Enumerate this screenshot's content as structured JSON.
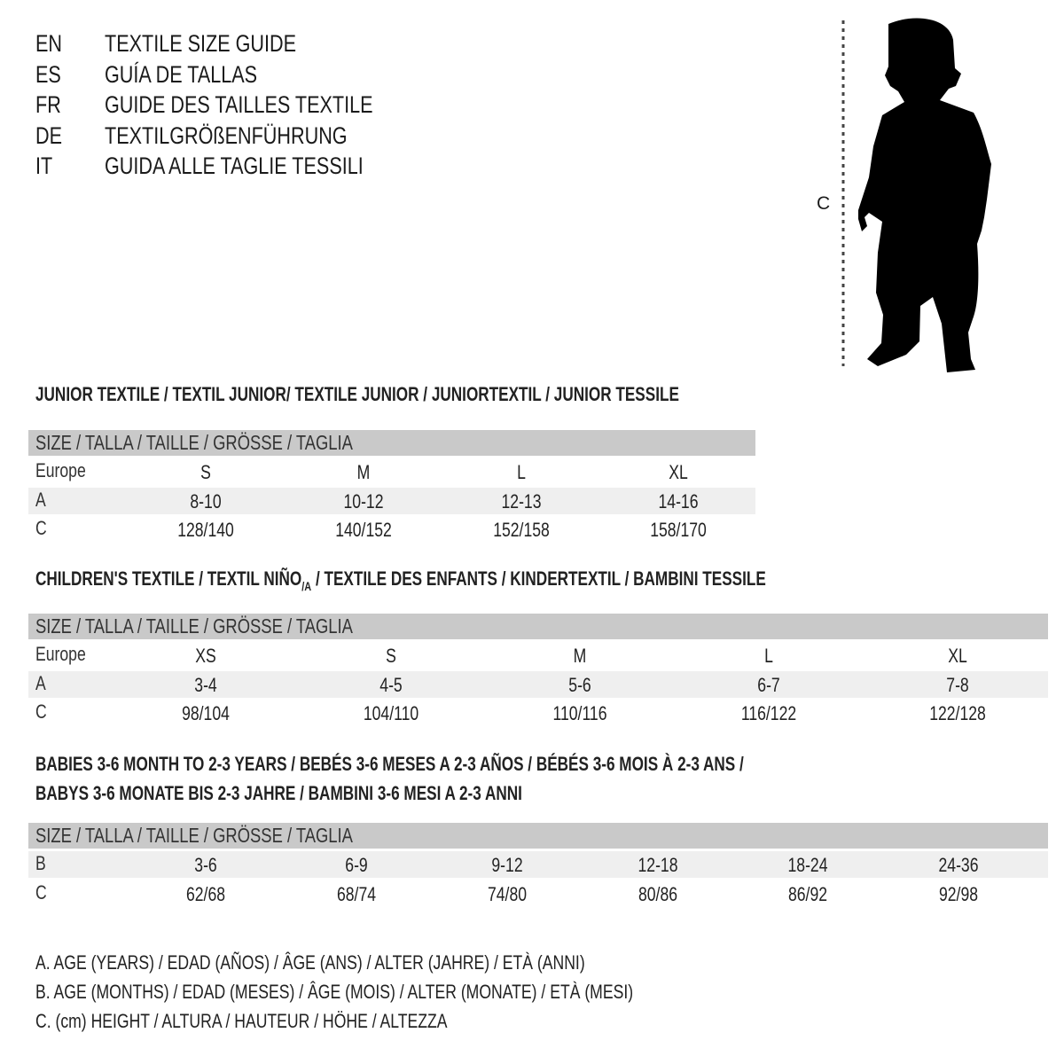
{
  "title_lines": [
    {
      "code": "EN",
      "text": "TEXTILE SIZE GUIDE"
    },
    {
      "code": "ES",
      "text": "GUÍA DE TALLAS"
    },
    {
      "code": "FR",
      "text": "GUIDE DES TAILLES TEXTILE"
    },
    {
      "code": "DE",
      "text": "TEXTILGRÖßENFÜHRUNG"
    },
    {
      "code": "IT",
      "text": "GUIDA ALLE TAGLIE TESSILI"
    }
  ],
  "figure": {
    "measure_label": "C",
    "icon": "child-silhouette-icon"
  },
  "colors": {
    "header_bar": "#c9c9c9",
    "stripe": "#efefef",
    "text": "#1a1a1a"
  },
  "junior": {
    "heading": "JUNIOR TEXTILE / TEXTIL JUNIOR/ TEXTILE JUNIOR / JUNIORTEXTIL / JUNIOR TESSILE",
    "size_header": "SIZE / TALLA / TAILLE / GRÖSSE / TAGLIA",
    "rows": [
      {
        "label": "Europe",
        "values": [
          "S",
          "M",
          "L",
          "XL"
        ]
      },
      {
        "label": "A",
        "values": [
          "8-10",
          "10-12",
          "12-13",
          "14-16"
        ]
      },
      {
        "label": "C",
        "values": [
          "128/140",
          "140/152",
          "152/158",
          "158/170"
        ]
      }
    ]
  },
  "children": {
    "heading_main": "CHILDREN'S TEXTILE / TEXTIL NIÑO",
    "heading_sub": "/A",
    "heading_rest": " / TEXTILE DES ENFANTS / KINDERTEXTIL / BAMBINI TESSILE",
    "size_header": "SIZE / TALLA / TAILLE / GRÖSSE / TAGLIA",
    "rows": [
      {
        "label": "Europe",
        "values": [
          "XS",
          "S",
          "M",
          "L",
          "XL"
        ]
      },
      {
        "label": "A",
        "values": [
          "3-4",
          "4-5",
          "5-6",
          "6-7",
          "7-8"
        ]
      },
      {
        "label": "C",
        "values": [
          "98/104",
          "104/110",
          "110/116",
          "116/122",
          "122/128"
        ]
      }
    ]
  },
  "babies": {
    "heading_line1": "BABIES 3-6 MONTH TO 2-3 YEARS / BEBÉS 3-6 MESES A 2-3 AÑOS / BÉBÉS 3-6 MOIS À 2-3 ANS /",
    "heading_line2": "BABYS 3-6 MONATE BIS 2-3 JAHRE / BAMBINI 3-6 MESI A 2-3 ANNI",
    "size_header": "SIZE / TALLA / TAILLE / GRÖSSE / TAGLIA",
    "rows": [
      {
        "label": "B",
        "values": [
          "3-6",
          "6-9",
          "9-12",
          "12-18",
          "18-24",
          "24-36"
        ]
      },
      {
        "label": "C",
        "values": [
          "62/68",
          "68/74",
          "74/80",
          "80/86",
          "86/92",
          "92/98"
        ]
      }
    ]
  },
  "legend": [
    "A. AGE (YEARS) / EDAD (AÑOS) / ÂGE (ANS) / ALTER (JAHRE) / ETÀ (ANNI)",
    "B. AGE (MONTHS) / EDAD (MESES) / ÂGE (MOIS) / ALTER (MONATE) / ETÀ (MESI)",
    "C. (cm) HEIGHT / ALTURA / HAUTEUR / HÖHE / ALTEZZA"
  ]
}
